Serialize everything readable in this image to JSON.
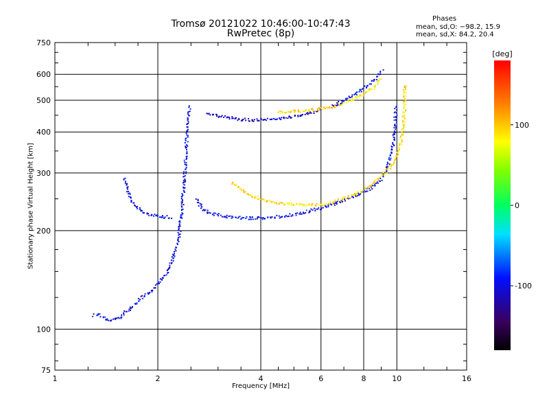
{
  "header": {
    "title_line1": "Tromsø 20121022 10:46:00-10:47:43",
    "title_line2": "RwPretec (8p)",
    "phases_title": "Phases",
    "phases_o": "mean, sd,O: −98.2, 15.9",
    "phases_x": "mean, sd,X:  84.2, 20.4"
  },
  "chart_data": {
    "type": "scatter",
    "title": "Tromsø 20121022 10:46:00-10:47:43",
    "subtitle": "RwPretec (8p)",
    "xlabel": "Frequency [MHz]",
    "ylabel": "Stationary phase Virtual Height [km]",
    "x_scale": "log",
    "y_scale": "log",
    "xlim": [
      1,
      16
    ],
    "ylim": [
      75,
      750
    ],
    "x_ticks": [
      1,
      2,
      4,
      6,
      8,
      10,
      16
    ],
    "x_tick_labels": [
      "1",
      "2",
      "4",
      "6",
      "8",
      "10",
      "16"
    ],
    "y_ticks": [
      75,
      100,
      200,
      300,
      400,
      500,
      600,
      750
    ],
    "y_tick_labels": [
      "75",
      "100",
      "200",
      "300",
      "400",
      "500",
      "600",
      "750"
    ],
    "grid": true,
    "colorbar": {
      "label": "[deg]",
      "range": [
        -180,
        180
      ],
      "ticks": [
        100,
        0,
        -100
      ],
      "tick_labels": [
        "100",
        "0",
        "-100"
      ]
    },
    "traces": [
      {
        "name_shown": "",
        "phase_deg": -100,
        "points": [
          [
            1.3,
            110
          ],
          [
            1.35,
            111
          ],
          [
            1.4,
            108
          ],
          [
            1.45,
            106
          ],
          [
            1.5,
            107
          ],
          [
            1.55,
            108
          ],
          [
            1.6,
            112
          ],
          [
            1.7,
            118
          ],
          [
            1.8,
            125
          ],
          [
            1.9,
            130
          ],
          [
            2.0,
            138
          ],
          [
            2.1,
            145
          ],
          [
            2.2,
            160
          ],
          [
            2.3,
            190
          ],
          [
            2.35,
            230
          ],
          [
            2.4,
            300
          ],
          [
            2.42,
            360
          ],
          [
            2.45,
            420
          ],
          [
            2.48,
            480
          ]
        ]
      },
      {
        "name_shown": "",
        "phase_deg": -100,
        "points": [
          [
            1.6,
            290
          ],
          [
            1.65,
            255
          ],
          [
            1.7,
            240
          ],
          [
            1.8,
            228
          ],
          [
            1.9,
            223
          ],
          [
            2.0,
            221
          ],
          [
            2.1,
            220
          ],
          [
            2.2,
            220
          ]
        ]
      },
      {
        "name_shown": "",
        "phase_deg": -100,
        "points": [
          [
            2.6,
            250
          ],
          [
            2.7,
            232
          ],
          [
            2.9,
            225
          ],
          [
            3.1,
            222
          ],
          [
            3.4,
            219
          ],
          [
            3.8,
            218
          ],
          [
            4.2,
            219
          ],
          [
            4.6,
            221
          ],
          [
            5.0,
            224
          ],
          [
            5.5,
            229
          ],
          [
            6.0,
            234
          ],
          [
            6.5,
            240
          ],
          [
            7.0,
            247
          ],
          [
            7.5,
            254
          ],
          [
            8.0,
            262
          ],
          [
            8.5,
            272
          ],
          [
            9.0,
            287
          ],
          [
            9.3,
            305
          ],
          [
            9.6,
            340
          ],
          [
            9.8,
            380
          ],
          [
            9.9,
            430
          ],
          [
            9.95,
            480
          ]
        ]
      },
      {
        "name_shown": "",
        "phase_deg": 90,
        "points": [
          [
            3.3,
            280
          ],
          [
            3.6,
            262
          ],
          [
            4.0,
            250
          ],
          [
            4.4,
            244
          ],
          [
            4.8,
            241
          ],
          [
            5.2,
            240
          ],
          [
            5.6,
            239
          ],
          [
            6.0,
            240
          ],
          [
            6.5,
            244
          ],
          [
            7.0,
            250
          ],
          [
            7.5,
            257
          ],
          [
            8.0,
            265
          ],
          [
            8.5,
            277
          ],
          [
            9.0,
            292
          ],
          [
            9.5,
            310
          ],
          [
            9.9,
            330
          ],
          [
            10.2,
            360
          ],
          [
            10.4,
            400
          ],
          [
            10.5,
            450
          ],
          [
            10.55,
            500
          ],
          [
            10.55,
            560
          ]
        ]
      },
      {
        "name_shown": "",
        "phase_deg": -110,
        "points": [
          [
            2.8,
            455
          ],
          [
            3.0,
            448
          ],
          [
            3.2,
            442
          ],
          [
            3.5,
            437
          ],
          [
            3.8,
            435
          ],
          [
            4.2,
            436
          ],
          [
            4.6,
            440
          ],
          [
            5.0,
            446
          ],
          [
            5.5,
            455
          ],
          [
            6.0,
            466
          ]
        ]
      },
      {
        "name_shown": "",
        "phase_deg": 90,
        "points": [
          [
            4.5,
            460
          ],
          [
            5.0,
            462
          ],
          [
            5.5,
            466
          ],
          [
            6.0,
            470
          ],
          [
            6.5,
            478
          ],
          [
            7.0,
            490
          ],
          [
            7.5,
            505
          ],
          [
            8.0,
            522
          ],
          [
            8.5,
            545
          ],
          [
            8.8,
            565
          ],
          [
            9.0,
            590
          ]
        ]
      },
      {
        "name_shown": "",
        "phase_deg": -100,
        "points": [
          [
            6.5,
            480
          ],
          [
            7.0,
            500
          ],
          [
            7.5,
            520
          ],
          [
            8.0,
            545
          ],
          [
            8.5,
            570
          ],
          [
            8.9,
            600
          ],
          [
            9.1,
            620
          ]
        ]
      }
    ]
  }
}
